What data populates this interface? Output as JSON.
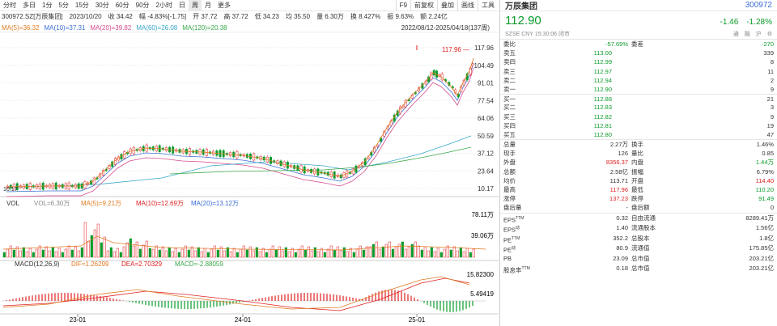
{
  "toolbar": {
    "items": [
      "分时",
      "多日",
      "1分",
      "5分",
      "15分",
      "30分",
      "60分",
      "90分",
      "2小时",
      "日",
      "周",
      "月",
      "更多"
    ],
    "active": "周",
    "right": [
      "F9",
      "前复权",
      "叠加",
      "画线",
      "工具"
    ]
  },
  "info": "300972.SZ[万辰集团]　2023/10/20　收 34.42　幅 -4.83%[-1.75]　开 37.72　高 37.72　低 34.23　均 35.50　量 6.30万　换 8.427%　振 9.63%　额 2.24亿",
  "ma": {
    "ma5": "MA(5)=36.32",
    "ma10": "MA(10)=37.31",
    "ma20": "MA(20)=39.82",
    "ma60": "MA(60)=26.08",
    "ma120": "MA(120)=20.38"
  },
  "range": "2022/08/12-2025/04/18(137周)",
  "price_axis": [
    "117.96",
    "104.49",
    "91.01",
    "77.54",
    "64.06",
    "50.59",
    "37.12",
    "23.64",
    "10.17"
  ],
  "price_callouts": {
    "high": "117.96",
    "low": "10.17"
  },
  "vol": {
    "title": "VOL",
    "val": "VOL=6.30万",
    "ma5": "MA(5)=9.21万",
    "ma10": "MA(10)=12.69万",
    "ma20": "MA(20)=13.12万",
    "axis": [
      "78.11万",
      "39.06万"
    ]
  },
  "macd": {
    "title": "MACD(12,26,9)",
    "dif": "DIF=1.26299",
    "dea": "DEA=2.70329",
    "macd": "MACD=-2.88059",
    "axis": [
      "15.82300",
      "5.49419"
    ]
  },
  "dates": [
    "23-01",
    "24-01",
    "25-01"
  ],
  "quote": {
    "name": "万辰集团",
    "code": "300972",
    "price": "112.90",
    "change": "-1.46",
    "pct": "-1.28%",
    "market": "SZSE CNY 15:30:06 闭市",
    "tags": [
      "通",
      "融",
      "沪"
    ]
  },
  "book_head": {
    "wb_label": "委比",
    "wb": "-57.69%",
    "wc_label": "委差",
    "wc": "-270"
  },
  "book": [
    {
      "l": "卖五",
      "p": "113.00",
      "v": "339",
      "pc": "green"
    },
    {
      "l": "卖四",
      "p": "112.99",
      "v": "8",
      "pc": "green"
    },
    {
      "l": "卖三",
      "p": "112.97",
      "v": "11",
      "pc": "green"
    },
    {
      "l": "卖二",
      "p": "112.94",
      "v": "2",
      "pc": "green"
    },
    {
      "l": "卖一",
      "p": "112.90",
      "v": "9",
      "pc": "green"
    },
    {
      "l": "买一",
      "p": "112.88",
      "v": "21",
      "pc": "green"
    },
    {
      "l": "买二",
      "p": "112.83",
      "v": "3",
      "pc": "green"
    },
    {
      "l": "买三",
      "p": "112.82",
      "v": "9",
      "pc": "green"
    },
    {
      "l": "买四",
      "p": "112.81",
      "v": "19",
      "pc": "green"
    },
    {
      "l": "买五",
      "p": "112.80",
      "v": "47",
      "pc": "green"
    }
  ],
  "stats": [
    [
      "总量",
      "2.27万",
      "",
      "换手",
      "1.46%",
      ""
    ],
    [
      "现手",
      "126",
      "",
      "量比",
      "0.85",
      ""
    ],
    [
      "外盘",
      "8356.37",
      "red",
      "内盘",
      "1.44万",
      "green"
    ],
    [
      "总额",
      "2.58亿",
      "",
      "振幅",
      "6.79%",
      ""
    ],
    [
      "均价",
      "113.71",
      "",
      "开盘",
      "114.40",
      "red"
    ],
    [
      "最高",
      "117.96",
      "red",
      "最低",
      "110.20",
      "green"
    ],
    [
      "涨停",
      "137.23",
      "red",
      "跌停",
      "91.49",
      "green"
    ],
    [
      "盘后量",
      "-",
      "",
      "盘后额",
      "0",
      ""
    ]
  ],
  "fin": [
    [
      "EPS",
      "TTM",
      "0.32",
      "自由流通",
      "8289.41万"
    ],
    [
      "EPS",
      "动",
      "1.40",
      "流通股本",
      "1.56亿"
    ],
    [
      "PE",
      "TTM",
      "352.2",
      "总股本",
      "1.8亿"
    ],
    [
      "PE",
      "动",
      "80.9",
      "流通值",
      "175.85亿"
    ],
    [
      "PB",
      "",
      "23.09",
      "总市值",
      "203.21亿"
    ],
    [
      "股息率",
      "TTM",
      "0.18",
      "总市值",
      "203.21亿"
    ]
  ]
}
